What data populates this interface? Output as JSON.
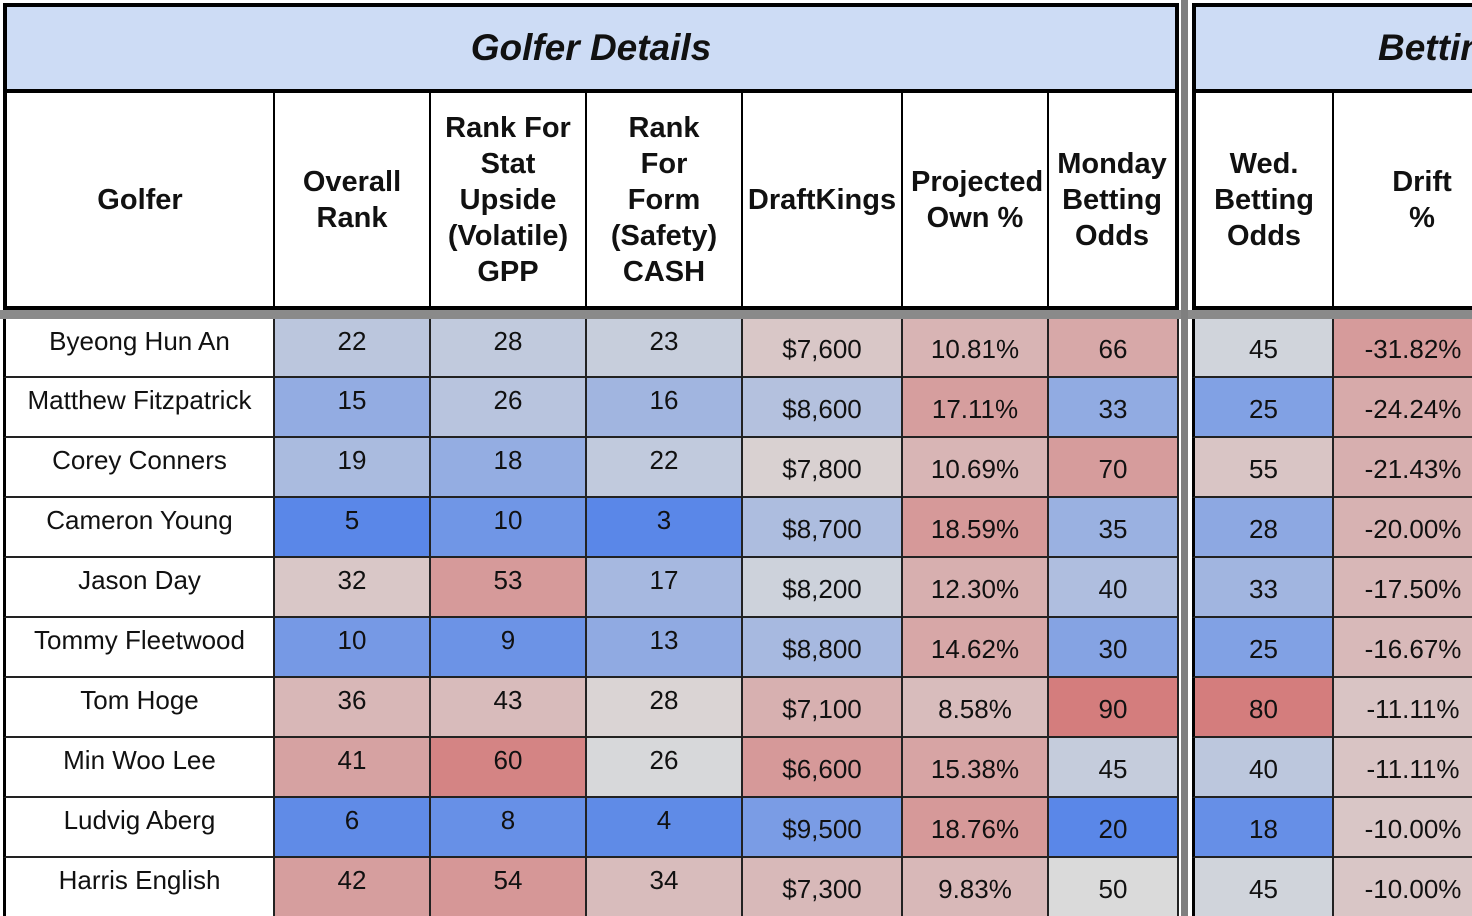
{
  "sections": {
    "golfer_details": "Golfer Details",
    "betting": "Betting"
  },
  "headers": {
    "golfer": "Golfer",
    "overall_rank": "Overall Rank",
    "rank_stat": "Rank For Stat Upside (Volatile) GPP",
    "rank_form": "Rank For Form (Safety) CASH",
    "draftkings": "DraftKings",
    "projected_own": "Projected Own %",
    "monday_odds": "Monday Betting Odds",
    "wed_odds": "Wed. Betting Odds",
    "drift": "Drift %"
  },
  "rows": [
    {
      "golfer": "Byeong Hun An",
      "overall": "22",
      "stat": "28",
      "form": "23",
      "dk": "$7,600",
      "own": "10.81%",
      "monday": "66",
      "wed": "45",
      "drift": "-31.82%"
    },
    {
      "golfer": "Matthew Fitzpatrick",
      "overall": "15",
      "stat": "26",
      "form": "16",
      "dk": "$8,600",
      "own": "17.11%",
      "monday": "33",
      "wed": "25",
      "drift": "-24.24%"
    },
    {
      "golfer": "Corey Conners",
      "overall": "19",
      "stat": "18",
      "form": "22",
      "dk": "$7,800",
      "own": "10.69%",
      "monday": "70",
      "wed": "55",
      "drift": "-21.43%"
    },
    {
      "golfer": "Cameron Young",
      "overall": "5",
      "stat": "10",
      "form": "3",
      "dk": "$8,700",
      "own": "18.59%",
      "monday": "35",
      "wed": "28",
      "drift": "-20.00%"
    },
    {
      "golfer": "Jason Day",
      "overall": "32",
      "stat": "53",
      "form": "17",
      "dk": "$8,200",
      "own": "12.30%",
      "monday": "40",
      "wed": "33",
      "drift": "-17.50%"
    },
    {
      "golfer": "Tommy Fleetwood",
      "overall": "10",
      "stat": "9",
      "form": "13",
      "dk": "$8,800",
      "own": "14.62%",
      "monday": "30",
      "wed": "25",
      "drift": "-16.67%"
    },
    {
      "golfer": "Tom Hoge",
      "overall": "36",
      "stat": "43",
      "form": "28",
      "dk": "$7,100",
      "own": "8.58%",
      "monday": "90",
      "wed": "80",
      "drift": "-11.11%"
    },
    {
      "golfer": "Min Woo Lee",
      "overall": "41",
      "stat": "60",
      "form": "26",
      "dk": "$6,600",
      "own": "15.38%",
      "monday": "45",
      "wed": "40",
      "drift": "-11.11%"
    },
    {
      "golfer": "Ludvig Aberg",
      "overall": "6",
      "stat": "8",
      "form": "4",
      "dk": "$9,500",
      "own": "18.76%",
      "monday": "20",
      "wed": "18",
      "drift": "-10.00%"
    },
    {
      "golfer": "Harris English",
      "overall": "42",
      "stat": "54",
      "form": "34",
      "dk": "$7,300",
      "own": "9.83%",
      "monday": "50",
      "wed": "45",
      "drift": "-10.00%"
    }
  ],
  "colors": {
    "header_fill": "#cddcf5",
    "heat_blue": "#5a87e8",
    "heat_neutral": "#dadada",
    "heat_red": "#d47d7d"
  }
}
